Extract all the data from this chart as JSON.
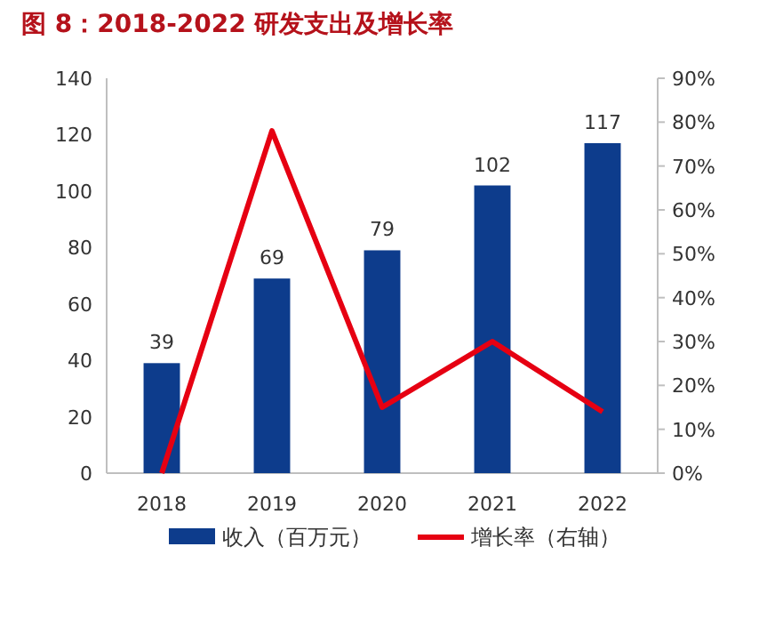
{
  "chart_data": {
    "type": "bar",
    "title": "图 8：2018-2022 研发支出及增长率",
    "categories": [
      "2018",
      "2019",
      "2020",
      "2021",
      "2022"
    ],
    "series": [
      {
        "name": "收入（百万元）",
        "color": "#0d3c8c",
        "values": [
          39,
          69,
          79,
          102,
          117
        ],
        "value_labels": [
          "39",
          "69",
          "79",
          "102",
          "117"
        ]
      },
      {
        "name": "增长率（右轴）",
        "type": "line",
        "axis": "y2",
        "color": "#e60012",
        "values": [
          0,
          78,
          15,
          30,
          14
        ]
      }
    ],
    "ylim": [
      0,
      140
    ],
    "yticks": [
      0,
      20,
      40,
      60,
      80,
      100,
      120,
      140
    ],
    "y2lim": [
      0,
      90
    ],
    "y2ticks": [
      {
        "value": 0,
        "label": "0%"
      },
      {
        "value": 10,
        "label": "10%"
      },
      {
        "value": 20,
        "label": "20%"
      },
      {
        "value": 30,
        "label": "30%"
      },
      {
        "value": 40,
        "label": "40%"
      },
      {
        "value": 50,
        "label": "50%"
      },
      {
        "value": 60,
        "label": "60%"
      },
      {
        "value": 70,
        "label": "70%"
      },
      {
        "value": 80,
        "label": "80%"
      },
      {
        "value": 90,
        "label": "90%"
      }
    ],
    "grid": false,
    "legend": "bottom",
    "marker": "none",
    "line_style": "solid"
  }
}
